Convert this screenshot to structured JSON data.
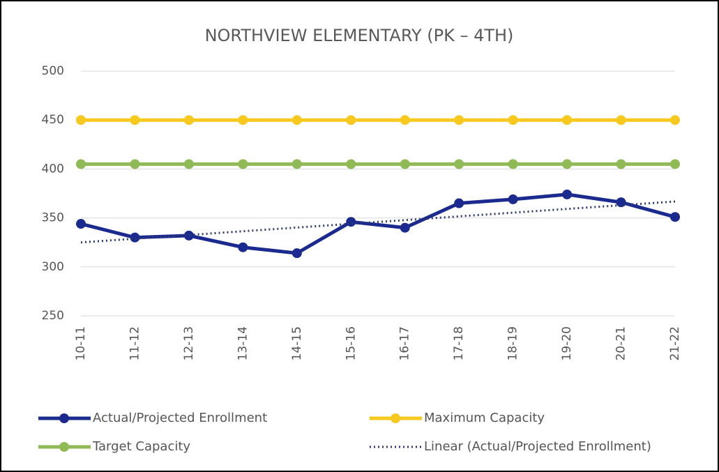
{
  "chart_data": {
    "type": "line",
    "title": "NORTHVIEW ELEMENTARY (PK – 4TH)",
    "categories": [
      "10-11",
      "11-12",
      "12-13",
      "13-14",
      "14-15",
      "15-16",
      "16-17",
      "17-18",
      "18-19",
      "19-20",
      "20-21",
      "21-22"
    ],
    "series": [
      {
        "name": "Actual/Projected Enrollment",
        "color": "#1b2a8e",
        "style": "solid",
        "values": [
          344,
          330,
          332,
          320,
          314,
          346,
          340,
          365,
          369,
          374,
          366,
          351
        ]
      },
      {
        "name": "Maximum Capacity",
        "color": "#f7c81e",
        "style": "solid",
        "values": [
          450,
          450,
          450,
          450,
          450,
          450,
          450,
          450,
          450,
          450,
          450,
          450
        ]
      },
      {
        "name": "Target Capacity",
        "color": "#8fba55",
        "style": "solid",
        "values": [
          405,
          405,
          405,
          405,
          405,
          405,
          405,
          405,
          405,
          405,
          405,
          405
        ]
      },
      {
        "name": "Linear (Actual/Projected Enrollment)",
        "color": "#2b3a70",
        "style": "dotted",
        "values": [
          325.0,
          328.8,
          332.6,
          336.4,
          340.2,
          344.0,
          347.8,
          351.6,
          355.4,
          359.2,
          363.0,
          366.8
        ]
      }
    ],
    "ylim": [
      250,
      500
    ],
    "yticks": [
      250,
      300,
      350,
      400,
      450,
      500
    ],
    "grid": true
  }
}
